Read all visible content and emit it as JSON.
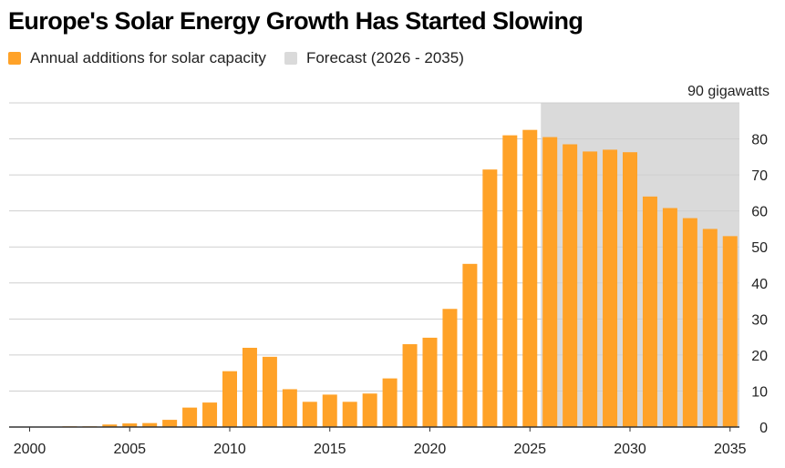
{
  "title": "Europe's Solar Energy Growth Has Started Slowing",
  "legend": [
    {
      "label": "Annual additions for solar capacity",
      "color": "#FFA228"
    },
    {
      "label": "Forecast (2026 - 2035)",
      "color": "#DADADA"
    }
  ],
  "chart_data": {
    "type": "bar",
    "title": "Europe's Solar Energy Growth Has Started Slowing",
    "unit_label": "90 gigawatts",
    "ylim": [
      0,
      90
    ],
    "y_ticks": [
      0,
      10,
      20,
      30,
      40,
      50,
      60,
      70,
      80
    ],
    "x_ticks": [
      2000,
      2005,
      2010,
      2015,
      2020,
      2025,
      2030,
      2035
    ],
    "grid": true,
    "legend_position": "top-left",
    "forecast_range": [
      2026,
      2035
    ],
    "categories": [
      2000,
      2001,
      2002,
      2003,
      2004,
      2005,
      2006,
      2007,
      2008,
      2009,
      2010,
      2011,
      2012,
      2013,
      2014,
      2015,
      2016,
      2017,
      2018,
      2019,
      2020,
      2021,
      2022,
      2023,
      2024,
      2025,
      2026,
      2027,
      2028,
      2029,
      2030,
      2031,
      2032,
      2033,
      2034,
      2035
    ],
    "series": [
      {
        "name": "Annual additions for solar capacity",
        "color": "#FFA228",
        "values": [
          0.1,
          0.1,
          0.2,
          0.2,
          0.7,
          1.0,
          1.1,
          2.0,
          5.4,
          6.8,
          15.5,
          22.0,
          19.5,
          10.5,
          7.0,
          9.0,
          7.0,
          9.3,
          13.5,
          23.0,
          24.8,
          32.8,
          45.3,
          71.5,
          81.0,
          82.5,
          80.5,
          78.5,
          76.5,
          77.0,
          76.3,
          64.0,
          60.8,
          58.0,
          55.0,
          53.0
        ]
      }
    ],
    "colors": {
      "bar": "#FFA228",
      "forecast_band": "#DADADA",
      "grid": "#CFCFCF",
      "axis": "#333333"
    }
  }
}
